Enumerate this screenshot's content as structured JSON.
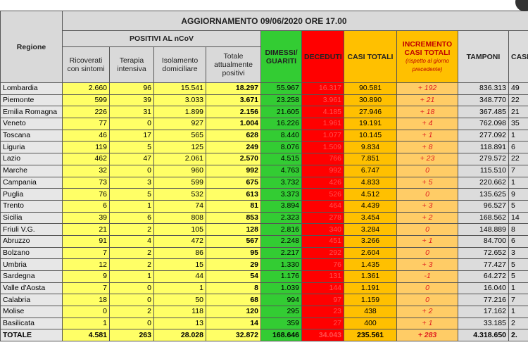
{
  "header": {
    "title": "AGGIORNAMENTO 09/06/2020 ORE 17.00",
    "region_label": "Regione",
    "group_label": "POSITIVI AL nCoV",
    "columns": [
      "Ricoverati con sintomi",
      "Terapia intensiva",
      "Isolamento domiciliare",
      "Totale attualmente positivi",
      "DIMESSI/ GUARITI",
      "DECEDUTI",
      "CASI TOTALI",
      "INCREMENTO CASI TOTALI",
      "TAMPONI",
      "CASI"
    ],
    "increment_note": "(rispetto al giorno precedente)"
  },
  "table": {
    "rows": [
      [
        "Lombardia",
        "2.660",
        "96",
        "15.541",
        "18.297",
        "55.967",
        "16.317",
        "90.581",
        "+ 192",
        "836.313",
        "49"
      ],
      [
        "Piemonte",
        "599",
        "39",
        "3.033",
        "3.671",
        "23.258",
        "3.961",
        "30.890",
        "+ 21",
        "348.770",
        "22"
      ],
      [
        "Emilia Romagna",
        "226",
        "31",
        "1.899",
        "2.156",
        "21.605",
        "4.185",
        "27.946",
        "+ 18",
        "367.485",
        "21"
      ],
      [
        "Veneto",
        "77",
        "0",
        "927",
        "1.004",
        "16.226",
        "1.961",
        "19.191",
        "+ 4",
        "762.098",
        "35"
      ],
      [
        "Toscana",
        "46",
        "17",
        "565",
        "628",
        "8.440",
        "1.077",
        "10.145",
        "+ 1",
        "277.092",
        "1"
      ],
      [
        "Liguria",
        "119",
        "5",
        "125",
        "249",
        "8.076",
        "1.509",
        "9.834",
        "+ 8",
        "118.891",
        "6"
      ],
      [
        "Lazio",
        "462",
        "47",
        "2.061",
        "2.570",
        "4.515",
        "766",
        "7.851",
        "+ 23",
        "279.572",
        "22"
      ],
      [
        "Marche",
        "32",
        "0",
        "960",
        "992",
        "4.763",
        "992",
        "6.747",
        "0",
        "115.510",
        "7"
      ],
      [
        "Campania",
        "73",
        "3",
        "599",
        "675",
        "3.732",
        "426",
        "4.833",
        "+ 5",
        "220.662",
        "1"
      ],
      [
        "Puglia",
        "76",
        "5",
        "532",
        "613",
        "3.373",
        "526",
        "4.512",
        "0",
        "135.625",
        "9"
      ],
      [
        "Trento",
        "6",
        "1",
        "74",
        "81",
        "3.894",
        "464",
        "4.439",
        "+ 3",
        "96.527",
        "5"
      ],
      [
        "Sicilia",
        "39",
        "6",
        "808",
        "853",
        "2.323",
        "278",
        "3.454",
        "+ 2",
        "168.562",
        "14"
      ],
      [
        "Friuli V.G.",
        "21",
        "2",
        "105",
        "128",
        "2.816",
        "340",
        "3.284",
        "0",
        "148.889",
        "8"
      ],
      [
        "Abruzzo",
        "91",
        "4",
        "472",
        "567",
        "2.248",
        "451",
        "3.266",
        "+ 1",
        "84.700",
        "6"
      ],
      [
        "Bolzano",
        "7",
        "2",
        "86",
        "95",
        "2.217",
        "292",
        "2.604",
        "0",
        "72.652",
        "3"
      ],
      [
        "Umbria",
        "12",
        "2",
        "15",
        "29",
        "1.330",
        "76",
        "1.435",
        "+ 3",
        "77.427",
        "5"
      ],
      [
        "Sardegna",
        "9",
        "1",
        "44",
        "54",
        "1.176",
        "131",
        "1.361",
        "-1",
        "64.272",
        "5"
      ],
      [
        "Valle d'Aosta",
        "7",
        "0",
        "1",
        "8",
        "1.039",
        "144",
        "1.191",
        "0",
        "16.040",
        "1"
      ],
      [
        "Calabria",
        "18",
        "0",
        "50",
        "68",
        "994",
        "97",
        "1.159",
        "0",
        "77.216",
        "7"
      ],
      [
        "Molise",
        "0",
        "2",
        "118",
        "120",
        "295",
        "23",
        "438",
        "+ 2",
        "17.162",
        "1"
      ],
      [
        "Basilicata",
        "1",
        "0",
        "13",
        "14",
        "359",
        "27",
        "400",
        "+ 1",
        "33.185",
        "2"
      ],
      [
        "TOTALE",
        "4.581",
        "263",
        "28.028",
        "32.872",
        "168.646",
        "34.043",
        "235.561",
        "+ 283",
        "4.318.650",
        "2."
      ]
    ]
  }
}
